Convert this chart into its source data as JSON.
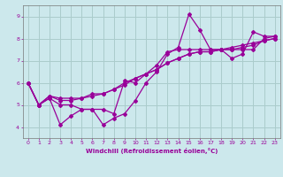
{
  "xlabel": "Windchill (Refroidissement éolien,°C)",
  "bg_color": "#cce8ec",
  "grid_color": "#aacccc",
  "line_color": "#990099",
  "marker": "D",
  "markersize": 2,
  "linewidth": 0.9,
  "xlim": [
    -0.5,
    23.5
  ],
  "ylim": [
    3.5,
    9.5
  ],
  "yticks": [
    4,
    5,
    6,
    7,
    8,
    9
  ],
  "xticks": [
    0,
    1,
    2,
    3,
    4,
    5,
    6,
    7,
    8,
    9,
    10,
    11,
    12,
    13,
    14,
    15,
    16,
    17,
    18,
    19,
    20,
    21,
    22,
    23
  ],
  "series": [
    [
      6.0,
      5.0,
      5.3,
      4.1,
      4.5,
      4.8,
      4.8,
      4.1,
      4.4,
      4.6,
      5.2,
      6.0,
      6.5,
      7.3,
      7.6,
      9.1,
      8.4,
      7.5,
      7.5,
      7.1,
      7.3,
      8.3,
      8.1,
      8.1
    ],
    [
      6.0,
      5.0,
      5.3,
      5.0,
      5.0,
      4.8,
      4.8,
      4.8,
      4.6,
      6.1,
      6.0,
      6.4,
      6.8,
      7.4,
      7.5,
      7.5,
      7.5,
      7.5,
      7.5,
      7.5,
      7.5,
      7.5,
      8.0,
      8.1
    ],
    [
      6.0,
      5.0,
      5.4,
      5.3,
      5.3,
      5.3,
      5.5,
      5.5,
      5.7,
      5.9,
      6.2,
      6.4,
      6.6,
      6.9,
      7.1,
      7.3,
      7.4,
      7.4,
      7.5,
      7.6,
      7.7,
      7.8,
      7.9,
      8.0
    ],
    [
      6.0,
      5.0,
      5.4,
      5.2,
      5.2,
      5.3,
      5.4,
      5.5,
      5.7,
      6.0,
      6.2,
      6.4,
      6.6,
      6.9,
      7.1,
      7.3,
      7.4,
      7.4,
      7.5,
      7.5,
      7.6,
      7.7,
      7.9,
      8.0
    ]
  ]
}
